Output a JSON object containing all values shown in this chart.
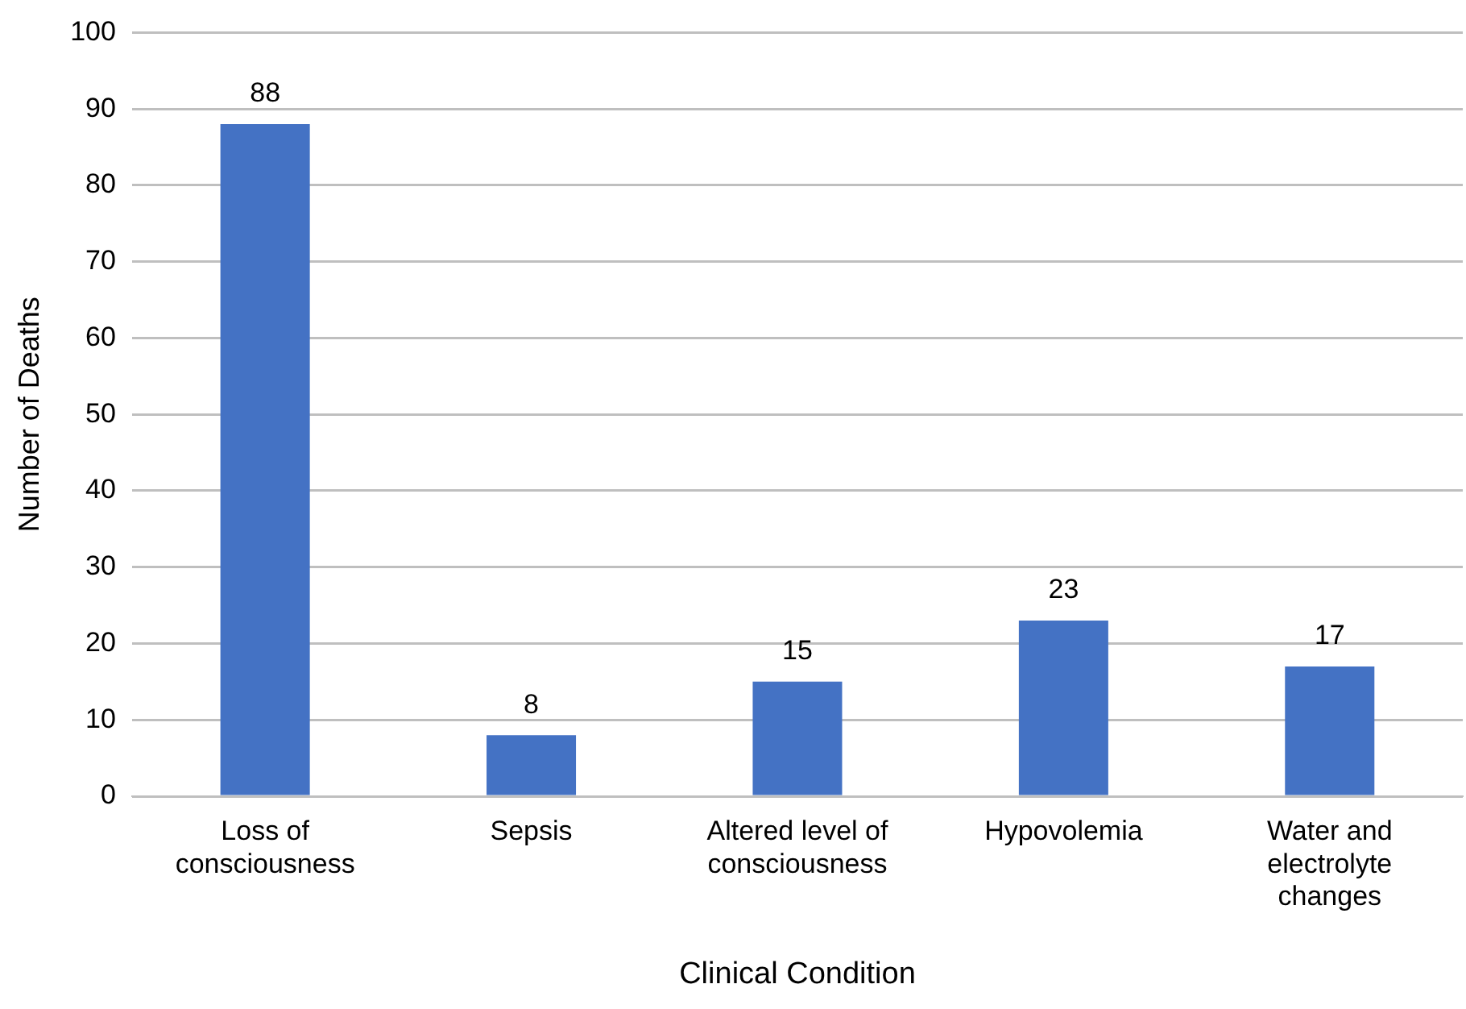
{
  "chart_data": {
    "type": "bar",
    "xlabel": "Clinical Condition",
    "ylabel": "Number of Deaths",
    "categories": [
      "Loss of consciousness",
      "Sepsis",
      "Altered level of consciousness",
      "Hypovolemia",
      "Water and electrolyte changes"
    ],
    "values": [
      88,
      8,
      15,
      23,
      17
    ],
    "color": "#4472c4",
    "ylim": [
      0,
      100
    ],
    "yticks": [
      0,
      10,
      20,
      30,
      40,
      50,
      60,
      70,
      80,
      90,
      100
    ],
    "grid": "y",
    "data_labels": true,
    "legend": false
  }
}
